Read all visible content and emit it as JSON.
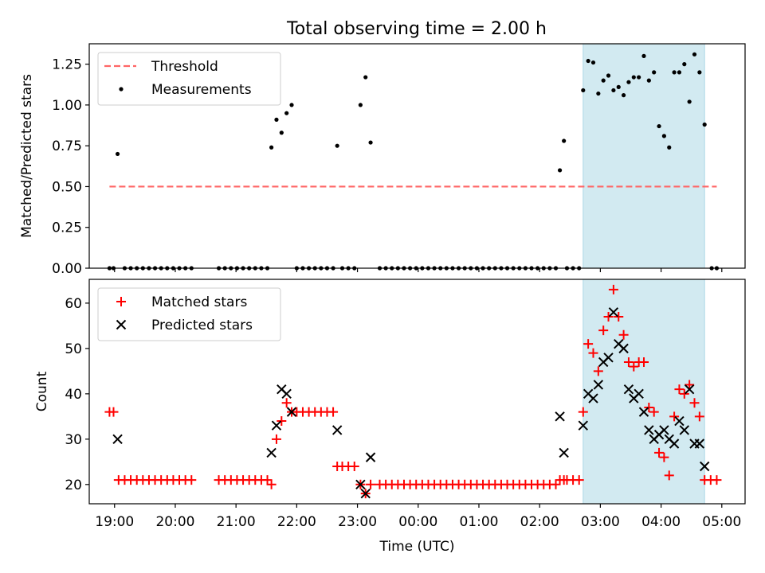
{
  "chart_data": [
    {
      "type": "scatter",
      "title": "Total observing time = 2.00 h",
      "xlabel": "",
      "ylabel": "Matched/Predicted stars",
      "ylim": [
        0,
        1.375
      ],
      "xlim": [
        "18:35",
        "05:23"
      ],
      "yticks": [
        "0.00",
        "0.25",
        "0.50",
        "0.75",
        "1.00",
        "1.25"
      ],
      "grid": false,
      "legend_position": "top-left",
      "shaded_x_range": [
        "02:43",
        "04:43"
      ],
      "shade_color": "#add8e6",
      "threshold": {
        "name": "Threshold",
        "y": 0.5,
        "x_range": [
          "18:55",
          "04:55"
        ],
        "color": "#ff6666"
      },
      "series": [
        {
          "name": "Measurements",
          "color": "#000000",
          "marker": "dot",
          "points": [
            [
              "18:55",
              0
            ],
            [
              "18:59",
              0
            ],
            [
              "19:03",
              0.7
            ],
            [
              "19:10",
              0
            ],
            [
              "19:16",
              0
            ],
            [
              "19:22",
              0
            ],
            [
              "19:28",
              0
            ],
            [
              "19:34",
              0
            ],
            [
              "19:40",
              0
            ],
            [
              "19:46",
              0
            ],
            [
              "19:52",
              0
            ],
            [
              "19:58",
              0
            ],
            [
              "20:04",
              0
            ],
            [
              "20:10",
              0
            ],
            [
              "20:16",
              0
            ],
            [
              "20:43",
              0
            ],
            [
              "20:49",
              0
            ],
            [
              "20:55",
              0
            ],
            [
              "21:01",
              0
            ],
            [
              "21:07",
              0
            ],
            [
              "21:13",
              0
            ],
            [
              "21:19",
              0
            ],
            [
              "21:25",
              0
            ],
            [
              "21:31",
              0
            ],
            [
              "21:35",
              0.74
            ],
            [
              "21:40",
              0.91
            ],
            [
              "21:45",
              0.83
            ],
            [
              "21:50",
              0.95
            ],
            [
              "21:55",
              1.0
            ],
            [
              "22:00",
              0
            ],
            [
              "22:06",
              0
            ],
            [
              "22:12",
              0
            ],
            [
              "22:18",
              0
            ],
            [
              "22:24",
              0
            ],
            [
              "22:30",
              0
            ],
            [
              "22:36",
              0
            ],
            [
              "22:40",
              0.75
            ],
            [
              "22:45",
              0
            ],
            [
              "22:51",
              0
            ],
            [
              "22:57",
              0
            ],
            [
              "23:03",
              1.0
            ],
            [
              "23:08",
              1.17
            ],
            [
              "23:13",
              0.77
            ],
            [
              "23:22",
              0
            ],
            [
              "23:28",
              0
            ],
            [
              "23:34",
              0
            ],
            [
              "23:40",
              0
            ],
            [
              "23:46",
              0
            ],
            [
              "23:52",
              0
            ],
            [
              "23:58",
              0
            ],
            [
              "00:04",
              0
            ],
            [
              "00:10",
              0
            ],
            [
              "00:16",
              0
            ],
            [
              "00:22",
              0
            ],
            [
              "00:28",
              0
            ],
            [
              "00:34",
              0
            ],
            [
              "00:40",
              0
            ],
            [
              "00:46",
              0
            ],
            [
              "00:52",
              0
            ],
            [
              "00:58",
              0
            ],
            [
              "01:04",
              0
            ],
            [
              "01:10",
              0
            ],
            [
              "01:16",
              0
            ],
            [
              "01:22",
              0
            ],
            [
              "01:28",
              0
            ],
            [
              "01:34",
              0
            ],
            [
              "01:40",
              0
            ],
            [
              "01:46",
              0
            ],
            [
              "01:52",
              0
            ],
            [
              "01:58",
              0
            ],
            [
              "02:04",
              0
            ],
            [
              "02:10",
              0
            ],
            [
              "02:16",
              0
            ],
            [
              "02:20",
              0.6
            ],
            [
              "02:24",
              0.78
            ],
            [
              "02:27",
              0
            ],
            [
              "02:33",
              0
            ],
            [
              "02:39",
              0
            ],
            [
              "02:43",
              1.09
            ],
            [
              "02:48",
              1.27
            ],
            [
              "02:53",
              1.26
            ],
            [
              "02:58",
              1.07
            ],
            [
              "03:03",
              1.15
            ],
            [
              "03:08",
              1.18
            ],
            [
              "03:13",
              1.09
            ],
            [
              "03:18",
              1.11
            ],
            [
              "03:23",
              1.06
            ],
            [
              "03:28",
              1.14
            ],
            [
              "03:33",
              1.17
            ],
            [
              "03:38",
              1.17
            ],
            [
              "03:43",
              1.3
            ],
            [
              "03:48",
              1.15
            ],
            [
              "03:53",
              1.2
            ],
            [
              "03:58",
              0.87
            ],
            [
              "04:03",
              0.81
            ],
            [
              "04:08",
              0.74
            ],
            [
              "04:13",
              1.2
            ],
            [
              "04:18",
              1.2
            ],
            [
              "04:23",
              1.25
            ],
            [
              "04:28",
              1.02
            ],
            [
              "04:33",
              1.31
            ],
            [
              "04:38",
              1.2
            ],
            [
              "04:43",
              0.88
            ],
            [
              "04:50",
              0
            ],
            [
              "04:55",
              0
            ]
          ]
        }
      ]
    },
    {
      "type": "scatter",
      "title": "",
      "xlabel": "Time (UTC)",
      "ylabel": "Count",
      "ylim": [
        15.75,
        65.25
      ],
      "xlim": [
        "18:35",
        "05:23"
      ],
      "yticks": [
        "20",
        "30",
        "40",
        "50",
        "60"
      ],
      "xticks": [
        "19:00",
        "20:00",
        "21:00",
        "22:00",
        "23:00",
        "00:00",
        "01:00",
        "02:00",
        "03:00",
        "04:00",
        "05:00"
      ],
      "grid": false,
      "legend_position": "top-left",
      "shaded_x_range": [
        "02:43",
        "04:43"
      ],
      "shade_color": "#add8e6",
      "series": [
        {
          "name": "Matched stars",
          "color": "#ff0000",
          "marker": "plus",
          "points": [
            [
              "18:55",
              36
            ],
            [
              "18:59",
              36
            ],
            [
              "19:04",
              21
            ],
            [
              "19:10",
              21
            ],
            [
              "19:16",
              21
            ],
            [
              "19:22",
              21
            ],
            [
              "19:28",
              21
            ],
            [
              "19:34",
              21
            ],
            [
              "19:40",
              21
            ],
            [
              "19:46",
              21
            ],
            [
              "19:52",
              21
            ],
            [
              "19:58",
              21
            ],
            [
              "20:04",
              21
            ],
            [
              "20:10",
              21
            ],
            [
              "20:16",
              21
            ],
            [
              "20:43",
              21
            ],
            [
              "20:49",
              21
            ],
            [
              "20:55",
              21
            ],
            [
              "21:01",
              21
            ],
            [
              "21:07",
              21
            ],
            [
              "21:13",
              21
            ],
            [
              "21:19",
              21
            ],
            [
              "21:25",
              21
            ],
            [
              "21:31",
              21
            ],
            [
              "21:35",
              20
            ],
            [
              "21:40",
              30
            ],
            [
              "21:45",
              34
            ],
            [
              "21:50",
              38
            ],
            [
              "21:55",
              36
            ],
            [
              "22:00",
              36
            ],
            [
              "22:06",
              36
            ],
            [
              "22:12",
              36
            ],
            [
              "22:18",
              36
            ],
            [
              "22:24",
              36
            ],
            [
              "22:30",
              36
            ],
            [
              "22:36",
              36
            ],
            [
              "22:40",
              24
            ],
            [
              "22:45",
              24
            ],
            [
              "22:51",
              24
            ],
            [
              "22:57",
              24
            ],
            [
              "23:03",
              20
            ],
            [
              "23:08",
              18
            ],
            [
              "23:13",
              20
            ],
            [
              "23:22",
              20
            ],
            [
              "23:28",
              20
            ],
            [
              "23:34",
              20
            ],
            [
              "23:40",
              20
            ],
            [
              "23:46",
              20
            ],
            [
              "23:52",
              20
            ],
            [
              "23:58",
              20
            ],
            [
              "00:04",
              20
            ],
            [
              "00:10",
              20
            ],
            [
              "00:16",
              20
            ],
            [
              "00:22",
              20
            ],
            [
              "00:28",
              20
            ],
            [
              "00:34",
              20
            ],
            [
              "00:40",
              20
            ],
            [
              "00:46",
              20
            ],
            [
              "00:52",
              20
            ],
            [
              "00:58",
              20
            ],
            [
              "01:04",
              20
            ],
            [
              "01:10",
              20
            ],
            [
              "01:16",
              20
            ],
            [
              "01:22",
              20
            ],
            [
              "01:28",
              20
            ],
            [
              "01:34",
              20
            ],
            [
              "01:40",
              20
            ],
            [
              "01:46",
              20
            ],
            [
              "01:52",
              20
            ],
            [
              "01:58",
              20
            ],
            [
              "02:04",
              20
            ],
            [
              "02:10",
              20
            ],
            [
              "02:16",
              20
            ],
            [
              "02:20",
              21
            ],
            [
              "02:24",
              21
            ],
            [
              "02:27",
              21
            ],
            [
              "02:33",
              21
            ],
            [
              "02:39",
              21
            ],
            [
              "02:43",
              36
            ],
            [
              "02:48",
              51
            ],
            [
              "02:53",
              49
            ],
            [
              "02:58",
              45
            ],
            [
              "03:03",
              54
            ],
            [
              "03:08",
              57
            ],
            [
              "03:13",
              63
            ],
            [
              "03:18",
              57
            ],
            [
              "03:23",
              53
            ],
            [
              "03:28",
              47
            ],
            [
              "03:33",
              46
            ],
            [
              "03:38",
              47
            ],
            [
              "03:43",
              47
            ],
            [
              "03:48",
              37
            ],
            [
              "03:53",
              36
            ],
            [
              "03:58",
              27
            ],
            [
              "04:03",
              26
            ],
            [
              "04:08",
              22
            ],
            [
              "04:13",
              35
            ],
            [
              "04:18",
              41
            ],
            [
              "04:23",
              40
            ],
            [
              "04:28",
              42
            ],
            [
              "04:33",
              38
            ],
            [
              "04:38",
              35
            ],
            [
              "04:43",
              21
            ],
            [
              "04:49",
              21
            ],
            [
              "04:55",
              21
            ]
          ]
        },
        {
          "name": "Predicted stars",
          "color": "#000000",
          "marker": "x",
          "points": [
            [
              "19:03",
              30
            ],
            [
              "21:35",
              27
            ],
            [
              "21:40",
              33
            ],
            [
              "21:45",
              41
            ],
            [
              "21:50",
              40
            ],
            [
              "21:55",
              36
            ],
            [
              "22:40",
              32
            ],
            [
              "23:03",
              20
            ],
            [
              "23:08",
              18
            ],
            [
              "23:13",
              26
            ],
            [
              "02:20",
              35
            ],
            [
              "02:24",
              27
            ],
            [
              "02:43",
              33
            ],
            [
              "02:48",
              40
            ],
            [
              "02:53",
              39
            ],
            [
              "02:58",
              42
            ],
            [
              "03:03",
              47
            ],
            [
              "03:08",
              48
            ],
            [
              "03:13",
              58
            ],
            [
              "03:18",
              51
            ],
            [
              "03:23",
              50
            ],
            [
              "03:28",
              41
            ],
            [
              "03:33",
              39
            ],
            [
              "03:38",
              40
            ],
            [
              "03:43",
              36
            ],
            [
              "03:48",
              32
            ],
            [
              "03:53",
              30
            ],
            [
              "03:58",
              31
            ],
            [
              "04:03",
              32
            ],
            [
              "04:08",
              30
            ],
            [
              "04:13",
              29
            ],
            [
              "04:18",
              34
            ],
            [
              "04:23",
              32
            ],
            [
              "04:28",
              41
            ],
            [
              "04:33",
              29
            ],
            [
              "04:38",
              29
            ],
            [
              "04:43",
              24
            ]
          ]
        }
      ]
    }
  ]
}
